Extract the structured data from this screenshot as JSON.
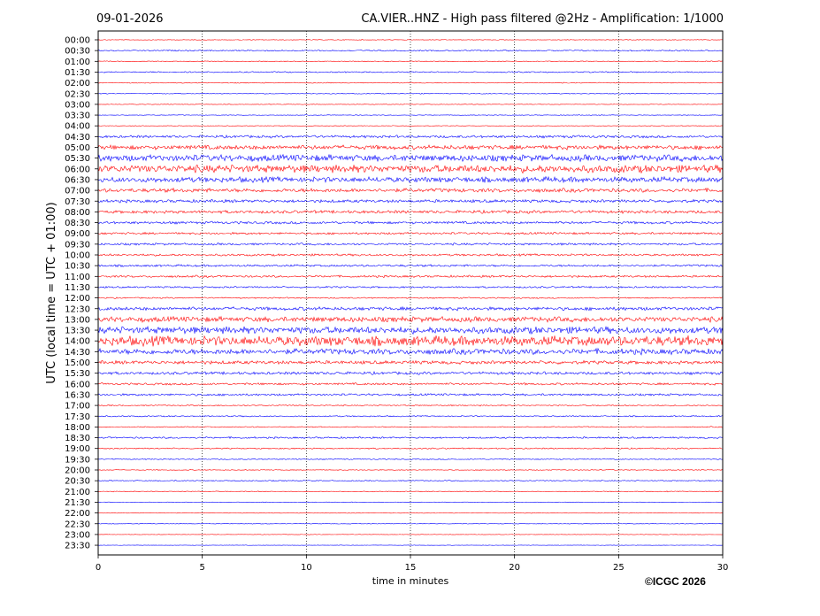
{
  "date_label": "09-01-2026",
  "copyright": "©ICGC 2026",
  "chart_data": {
    "type": "line",
    "title": "CA.VIER..HNZ - High pass filtered @2Hz - Amplification: 1/1000",
    "xlabel": "time in minutes",
    "ylabel": "UTC (local time = UTC + 01:00)",
    "xlim": [
      0,
      30
    ],
    "x_ticks": [
      0,
      5,
      10,
      15,
      20,
      25,
      30
    ],
    "vertical_gridlines_dotted_at": [
      5,
      10,
      15,
      20,
      25
    ],
    "trace_colors": [
      "#ff0000",
      "#0000ff"
    ],
    "rows": [
      {
        "label": "00:00",
        "amp": 0.3
      },
      {
        "label": "00:30",
        "amp": 0.6
      },
      {
        "label": "01:00",
        "amp": 0.4
      },
      {
        "label": "01:30",
        "amp": 0.6
      },
      {
        "label": "02:00",
        "amp": 0.4
      },
      {
        "label": "02:30",
        "amp": 0.4
      },
      {
        "label": "03:00",
        "amp": 0.3
      },
      {
        "label": "03:30",
        "amp": 0.3
      },
      {
        "label": "04:00",
        "amp": 0.3
      },
      {
        "label": "04:30",
        "amp": 1.2
      },
      {
        "label": "05:00",
        "amp": 2.0
      },
      {
        "label": "05:30",
        "amp": 3.0
      },
      {
        "label": "06:00",
        "amp": 3.5
      },
      {
        "label": "06:30",
        "amp": 2.5
      },
      {
        "label": "07:00",
        "amp": 1.8
      },
      {
        "label": "07:30",
        "amp": 1.4
      },
      {
        "label": "08:00",
        "amp": 1.4
      },
      {
        "label": "08:30",
        "amp": 1.2
      },
      {
        "label": "09:00",
        "amp": 1.0
      },
      {
        "label": "09:30",
        "amp": 1.0
      },
      {
        "label": "10:00",
        "amp": 1.0
      },
      {
        "label": "10:30",
        "amp": 1.0
      },
      {
        "label": "11:00",
        "amp": 1.0
      },
      {
        "label": "11:30",
        "amp": 0.8
      },
      {
        "label": "12:00",
        "amp": 0.6
      },
      {
        "label": "12:30",
        "amp": 1.6
      },
      {
        "label": "13:00",
        "amp": 2.4
      },
      {
        "label": "13:30",
        "amp": 3.2
      },
      {
        "label": "14:00",
        "amp": 4.5
      },
      {
        "label": "14:30",
        "amp": 2.6
      },
      {
        "label": "15:00",
        "amp": 1.6
      },
      {
        "label": "15:30",
        "amp": 1.3
      },
      {
        "label": "16:00",
        "amp": 1.0
      },
      {
        "label": "16:30",
        "amp": 1.0
      },
      {
        "label": "17:00",
        "amp": 0.6
      },
      {
        "label": "17:30",
        "amp": 0.6
      },
      {
        "label": "18:00",
        "amp": 0.5
      },
      {
        "label": "18:30",
        "amp": 0.8
      },
      {
        "label": "19:00",
        "amp": 0.6
      },
      {
        "label": "19:30",
        "amp": 0.5
      },
      {
        "label": "20:00",
        "amp": 0.4
      },
      {
        "label": "20:30",
        "amp": 0.5
      },
      {
        "label": "21:00",
        "amp": 0.4
      },
      {
        "label": "21:30",
        "amp": 0.3
      },
      {
        "label": "22:00",
        "amp": 0.3
      },
      {
        "label": "22:30",
        "amp": 0.3
      },
      {
        "label": "23:00",
        "amp": 0.2
      },
      {
        "label": "23:30",
        "amp": 0.2
      }
    ]
  }
}
